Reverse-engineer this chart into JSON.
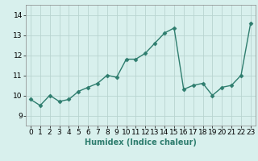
{
  "x": [
    0,
    1,
    2,
    3,
    4,
    5,
    6,
    7,
    8,
    9,
    10,
    11,
    12,
    13,
    14,
    15,
    16,
    17,
    18,
    19,
    20,
    21,
    22,
    23
  ],
  "y": [
    9.8,
    9.5,
    10.0,
    9.7,
    9.8,
    10.2,
    10.4,
    10.6,
    11.0,
    10.9,
    11.8,
    11.8,
    12.1,
    12.6,
    13.1,
    13.35,
    10.3,
    10.5,
    10.6,
    10.0,
    10.4,
    10.5,
    11.0,
    13.6
  ],
  "xlabel": "Humidex (Indice chaleur)",
  "ylim": [
    8.5,
    14.5
  ],
  "xlim": [
    -0.5,
    23.5
  ],
  "yticks": [
    9,
    10,
    11,
    12,
    13,
    14
  ],
  "xticks": [
    0,
    1,
    2,
    3,
    4,
    5,
    6,
    7,
    8,
    9,
    10,
    11,
    12,
    13,
    14,
    15,
    16,
    17,
    18,
    19,
    20,
    21,
    22,
    23
  ],
  "line_color": "#2e7d6e",
  "marker_color": "#2e7d6e",
  "bg_color": "#d8f0ed",
  "grid_color": "#b8d4d0",
  "xlabel_fontsize": 7,
  "tick_fontsize": 6.5,
  "line_width": 1.0,
  "marker_size": 2.5
}
